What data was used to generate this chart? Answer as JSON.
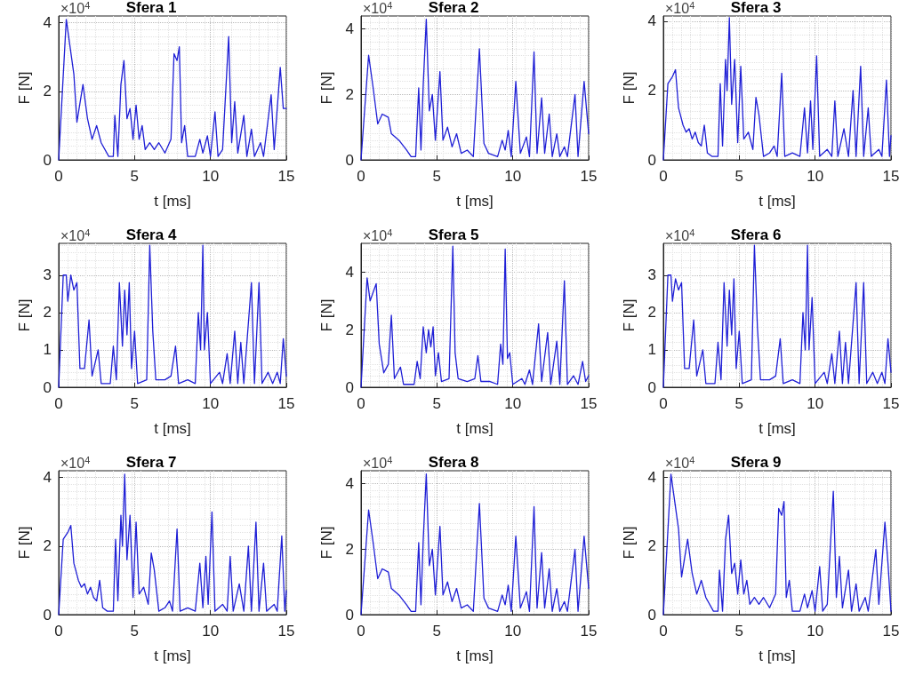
{
  "chart_data": [
    {
      "type": "line",
      "title": "Sfera 1",
      "xlabel": "t [ms]",
      "ylabel": "F [N]",
      "annotations": [
        "×10$^{4}$"
      ],
      "color": "#1f1fd6",
      "marker": "none",
      "line_style": "solid",
      "grid": true,
      "xlim": [
        0,
        15
      ],
      "xticks": [
        0,
        5,
        10,
        15
      ],
      "ylim": [
        0,
        4.2
      ],
      "yticks": [
        0,
        2,
        4
      ],
      "x": [
        0,
        0.5,
        1.0,
        1.2,
        1.6,
        1.9,
        2.2,
        2.5,
        2.8,
        3.3,
        3.6,
        3.7,
        3.9,
        4.1,
        4.3,
        4.5,
        4.7,
        4.9,
        5.1,
        5.3,
        5.5,
        5.7,
        6.0,
        6.3,
        6.6,
        7.0,
        7.4,
        7.6,
        7.8,
        7.95,
        8.1,
        8.3,
        8.5,
        9.0,
        9.3,
        9.5,
        9.8,
        10.0,
        10.3,
        10.5,
        10.8,
        11.2,
        11.4,
        11.6,
        11.8,
        12.2,
        12.4,
        12.7,
        12.9,
        13.3,
        13.5,
        14.0,
        14.2,
        14.6,
        14.8,
        15
      ],
      "values": [
        0,
        4.1,
        2.5,
        1.1,
        2.2,
        1.2,
        0.6,
        1.0,
        0.5,
        0.1,
        0.1,
        1.3,
        0.1,
        2.2,
        2.9,
        1.2,
        1.5,
        0.6,
        1.6,
        0.6,
        1.0,
        0.3,
        0.5,
        0.3,
        0.5,
        0.2,
        0.6,
        3.1,
        2.9,
        3.3,
        0.5,
        1.0,
        0.1,
        0.1,
        0.6,
        0.2,
        0.7,
        0.1,
        1.4,
        0.1,
        0.3,
        3.6,
        0.5,
        1.7,
        0.2,
        1.3,
        0.1,
        0.9,
        0.1,
        0.5,
        0.1,
        1.9,
        0.3,
        2.7,
        1.5,
        1.5
      ]
    },
    {
      "type": "line",
      "title": "Sfera 2",
      "xlabel": "t [ms]",
      "ylabel": "F [N]",
      "annotations": [
        "×10$^{4}$"
      ],
      "color": "#1f1fd6",
      "marker": "none",
      "line_style": "solid",
      "grid": true,
      "xlim": [
        0,
        15
      ],
      "xticks": [
        0,
        5,
        10,
        15
      ],
      "ylim": [
        0,
        4.4
      ],
      "yticks": [
        0,
        2,
        4
      ],
      "x": [
        0,
        0.5,
        0.8,
        1.1,
        1.4,
        1.8,
        2.0,
        2.5,
        3.0,
        3.3,
        3.6,
        3.8,
        3.95,
        4.1,
        4.3,
        4.5,
        4.7,
        4.9,
        5.2,
        5.4,
        5.7,
        6.0,
        6.3,
        6.6,
        7.0,
        7.4,
        7.8,
        8.1,
        8.4,
        9.0,
        9.3,
        9.5,
        9.7,
        9.9,
        10.2,
        10.5,
        10.9,
        11.1,
        11.4,
        11.6,
        11.9,
        12.1,
        12.4,
        12.6,
        12.9,
        13.1,
        13.4,
        13.6,
        14.1,
        14.3,
        14.7,
        15
      ],
      "values": [
        0,
        3.2,
        2.2,
        1.1,
        1.4,
        1.3,
        0.8,
        0.6,
        0.3,
        0.1,
        0.1,
        2.2,
        0.3,
        2.3,
        4.3,
        1.5,
        2.0,
        0.6,
        2.7,
        0.6,
        1.0,
        0.4,
        0.8,
        0.2,
        0.3,
        0.1,
        3.4,
        0.5,
        0.2,
        0.1,
        0.6,
        0.3,
        0.9,
        0.1,
        2.4,
        0.2,
        0.7,
        0.1,
        3.3,
        0.2,
        1.9,
        0.2,
        1.4,
        0.1,
        0.8,
        0.1,
        0.4,
        0.1,
        2.0,
        0.1,
        2.4,
        0.8
      ]
    },
    {
      "type": "line",
      "title": "Sfera 3",
      "xlabel": "t [ms]",
      "ylabel": "F [N]",
      "annotations": [
        "×10$^{4}$"
      ],
      "color": "#1f1fd6",
      "marker": "none",
      "line_style": "solid",
      "grid": true,
      "xlim": [
        0,
        15
      ],
      "xticks": [
        0,
        5,
        10,
        15
      ],
      "ylim": [
        0,
        4.15
      ],
      "yticks": [
        0,
        2,
        4
      ],
      "x": [
        0,
        0.3,
        0.6,
        0.8,
        1.0,
        1.3,
        1.5,
        1.7,
        1.9,
        2.1,
        2.3,
        2.5,
        2.7,
        2.9,
        3.2,
        3.6,
        3.75,
        3.9,
        4.1,
        4.2,
        4.35,
        4.5,
        4.7,
        4.9,
        5.1,
        5.3,
        5.6,
        5.9,
        6.1,
        6.3,
        6.6,
        7.0,
        7.3,
        7.5,
        7.8,
        8.0,
        8.5,
        9.0,
        9.3,
        9.5,
        9.7,
        9.85,
        10.1,
        10.3,
        10.8,
        11.1,
        11.3,
        11.5,
        11.9,
        12.2,
        12.5,
        12.7,
        13.0,
        13.2,
        13.5,
        13.7,
        14.2,
        14.4,
        14.7,
        14.9,
        15
      ],
      "values": [
        0,
        2.2,
        2.4,
        2.6,
        1.5,
        1.0,
        0.8,
        0.9,
        0.6,
        0.8,
        0.5,
        0.4,
        1.0,
        0.2,
        0.1,
        0.1,
        2.2,
        0.4,
        2.9,
        2.0,
        4.1,
        1.6,
        2.9,
        0.5,
        2.7,
        0.6,
        0.8,
        0.3,
        1.8,
        1.3,
        0.1,
        0.2,
        0.4,
        0.1,
        2.5,
        0.1,
        0.2,
        0.1,
        1.5,
        0.2,
        1.7,
        0.3,
        3.0,
        0.1,
        0.3,
        0.1,
        1.7,
        0.1,
        0.9,
        0.1,
        2.0,
        0.1,
        2.7,
        0.1,
        1.5,
        0.1,
        0.3,
        0.1,
        2.3,
        0.1,
        0.7
      ]
    },
    {
      "type": "line",
      "title": "Sfera 4",
      "xlabel": "t [ms]",
      "ylabel": "F [N]",
      "annotations": [
        "×10$^{4}$"
      ],
      "color": "#1f1fd6",
      "marker": "none",
      "line_style": "solid",
      "grid": true,
      "xlim": [
        0,
        15
      ],
      "xticks": [
        0,
        5,
        10,
        15
      ],
      "ylim": [
        0,
        3.85
      ],
      "yticks": [
        0,
        1,
        2,
        3
      ],
      "x": [
        0,
        0.3,
        0.5,
        0.6,
        0.8,
        1.0,
        1.2,
        1.4,
        1.7,
        2.0,
        2.2,
        2.6,
        2.8,
        3.4,
        3.6,
        3.8,
        4.0,
        4.2,
        4.35,
        4.5,
        4.65,
        4.8,
        5.0,
        5.2,
        5.8,
        6.0,
        6.2,
        6.4,
        7.0,
        7.4,
        7.7,
        7.9,
        8.5,
        9.0,
        9.2,
        9.35,
        9.5,
        9.6,
        9.8,
        10.0,
        10.6,
        10.8,
        11.1,
        11.3,
        11.6,
        11.8,
        12.0,
        12.2,
        12.7,
        12.9,
        13.2,
        13.4,
        13.8,
        14.1,
        14.4,
        14.6,
        14.8,
        15
      ],
      "values": [
        0,
        3.0,
        3.0,
        2.3,
        3.0,
        2.6,
        2.8,
        0.5,
        0.5,
        1.8,
        0.3,
        1.0,
        0.1,
        0.1,
        1.1,
        0.2,
        2.8,
        1.1,
        2.6,
        1.4,
        2.8,
        0.5,
        1.5,
        0.1,
        0.2,
        3.8,
        1.5,
        0.2,
        0.2,
        0.3,
        1.1,
        0.1,
        0.2,
        0.1,
        2.0,
        1.0,
        3.8,
        1.0,
        2.0,
        0.1,
        0.4,
        0.1,
        0.9,
        0.1,
        1.5,
        0.1,
        1.2,
        0.1,
        2.8,
        0.1,
        2.8,
        0.1,
        0.4,
        0.1,
        0.4,
        0.1,
        1.3,
        0.3
      ]
    },
    {
      "type": "line",
      "title": "Sfera 5",
      "xlabel": "t [ms]",
      "ylabel": "F [N]",
      "annotations": [
        "×10$^{4}$"
      ],
      "color": "#1f1fd6",
      "marker": "none",
      "line_style": "solid",
      "grid": true,
      "xlim": [
        0,
        15
      ],
      "xticks": [
        0,
        5,
        10,
        15
      ],
      "ylim": [
        0,
        5
      ],
      "yticks": [
        0,
        2,
        4
      ],
      "x": [
        0,
        0.4,
        0.6,
        0.8,
        1.0,
        1.2,
        1.5,
        1.8,
        2.0,
        2.2,
        2.6,
        2.8,
        3.5,
        3.7,
        3.9,
        4.1,
        4.3,
        4.45,
        4.6,
        4.75,
        4.9,
        5.1,
        5.3,
        5.8,
        6.05,
        6.2,
        6.4,
        7.0,
        7.5,
        7.7,
        7.9,
        8.5,
        9.0,
        9.2,
        9.35,
        9.5,
        9.65,
        9.8,
        10.0,
        10.6,
        10.8,
        11.1,
        11.3,
        11.7,
        11.9,
        12.3,
        12.5,
        12.9,
        13.1,
        13.4,
        13.6,
        14.0,
        14.3,
        14.6,
        14.8,
        15
      ],
      "values": [
        0,
        3.8,
        3.0,
        3.3,
        3.6,
        1.5,
        0.5,
        0.8,
        2.5,
        0.3,
        0.7,
        0.1,
        0.1,
        0.9,
        0.3,
        2.1,
        1.2,
        2.0,
        1.4,
        2.1,
        0.4,
        1.2,
        0.2,
        0.3,
        4.9,
        1.2,
        0.3,
        0.2,
        0.3,
        1.1,
        0.2,
        0.2,
        0.1,
        1.5,
        0.8,
        4.8,
        1.0,
        1.2,
        0.1,
        0.3,
        0.1,
        0.6,
        0.1,
        2.2,
        0.2,
        1.9,
        0.1,
        1.6,
        0.1,
        3.7,
        0.1,
        0.4,
        0.1,
        0.9,
        0.2,
        0.4
      ]
    },
    {
      "type": "line",
      "title": "Sfera 6",
      "xlabel": "t [ms]",
      "ylabel": "F [N]",
      "annotations": [
        "×10$^{4}$"
      ],
      "color": "#1f1fd6",
      "marker": "none",
      "line_style": "solid",
      "grid": true,
      "xlim": [
        0,
        15
      ],
      "xticks": [
        0,
        5,
        10,
        15
      ],
      "ylim": [
        0,
        3.85
      ],
      "yticks": [
        0,
        1,
        2,
        3
      ],
      "x": [
        0,
        0.3,
        0.5,
        0.6,
        0.8,
        1.0,
        1.2,
        1.4,
        1.7,
        2.0,
        2.2,
        2.6,
        2.8,
        3.4,
        3.6,
        3.8,
        4.0,
        4.2,
        4.35,
        4.5,
        4.65,
        4.8,
        5.0,
        5.2,
        5.8,
        6.0,
        6.2,
        6.4,
        7.0,
        7.4,
        7.7,
        7.9,
        8.5,
        9.0,
        9.2,
        9.35,
        9.5,
        9.6,
        9.8,
        10.0,
        10.6,
        10.8,
        11.1,
        11.3,
        11.6,
        11.8,
        12.0,
        12.2,
        12.7,
        12.9,
        13.2,
        13.4,
        13.8,
        14.1,
        14.4,
        14.6,
        14.8,
        15
      ],
      "values": [
        0,
        3.0,
        3.0,
        2.3,
        2.9,
        2.6,
        2.8,
        0.5,
        0.5,
        1.8,
        0.3,
        1.0,
        0.1,
        0.1,
        1.2,
        0.2,
        2.8,
        1.1,
        2.6,
        1.4,
        2.9,
        0.5,
        1.5,
        0.1,
        0.2,
        3.8,
        1.6,
        0.2,
        0.2,
        0.3,
        1.3,
        0.1,
        0.2,
        0.1,
        2.0,
        1.0,
        3.8,
        1.0,
        2.4,
        0.1,
        0.4,
        0.1,
        0.9,
        0.1,
        1.5,
        0.1,
        1.2,
        0.1,
        2.8,
        0.1,
        2.8,
        0.1,
        0.4,
        0.1,
        0.4,
        0.1,
        1.3,
        0.4
      ]
    },
    {
      "type": "line",
      "title": "Sfera 7",
      "xlabel": "t [ms]",
      "ylabel": "F [N]",
      "annotations": [
        "×10$^{4}$"
      ],
      "color": "#1f1fd6",
      "marker": "none",
      "line_style": "solid",
      "grid": true,
      "xlim": [
        0,
        15
      ],
      "xticks": [
        0,
        5,
        10,
        15
      ],
      "ylim": [
        0,
        4.2
      ],
      "yticks": [
        0,
        2,
        4
      ],
      "x": [
        0,
        0.3,
        0.6,
        0.8,
        1.0,
        1.3,
        1.5,
        1.7,
        1.9,
        2.1,
        2.3,
        2.5,
        2.7,
        2.9,
        3.2,
        3.6,
        3.75,
        3.9,
        4.1,
        4.2,
        4.35,
        4.5,
        4.7,
        4.9,
        5.1,
        5.3,
        5.6,
        5.9,
        6.1,
        6.3,
        6.6,
        7.0,
        7.3,
        7.5,
        7.8,
        8.0,
        8.5,
        9.0,
        9.3,
        9.5,
        9.7,
        9.85,
        10.1,
        10.3,
        10.8,
        11.1,
        11.3,
        11.5,
        11.9,
        12.2,
        12.5,
        12.7,
        13.0,
        13.2,
        13.5,
        13.7,
        14.2,
        14.4,
        14.7,
        14.9,
        15
      ],
      "values": [
        0,
        2.2,
        2.4,
        2.6,
        1.5,
        1.0,
        0.8,
        0.9,
        0.6,
        0.8,
        0.5,
        0.4,
        1.0,
        0.2,
        0.1,
        0.1,
        2.2,
        0.4,
        2.9,
        2.0,
        4.1,
        1.6,
        2.9,
        0.5,
        2.7,
        0.6,
        0.8,
        0.3,
        1.8,
        1.3,
        0.1,
        0.2,
        0.4,
        0.1,
        2.5,
        0.1,
        0.2,
        0.1,
        1.5,
        0.2,
        1.7,
        0.3,
        3.0,
        0.1,
        0.3,
        0.1,
        1.7,
        0.1,
        0.9,
        0.1,
        2.0,
        0.1,
        2.7,
        0.1,
        1.5,
        0.1,
        0.3,
        0.1,
        2.3,
        0.1,
        0.7
      ]
    },
    {
      "type": "line",
      "title": "Sfera 8",
      "xlabel": "t [ms]",
      "ylabel": "F [N]",
      "annotations": [
        "×10$^{4}$"
      ],
      "color": "#1f1fd6",
      "marker": "none",
      "line_style": "solid",
      "grid": true,
      "xlim": [
        0,
        15
      ],
      "xticks": [
        0,
        5,
        10,
        15
      ],
      "ylim": [
        0,
        4.4
      ],
      "yticks": [
        0,
        2,
        4
      ],
      "x": [
        0,
        0.5,
        0.8,
        1.1,
        1.4,
        1.8,
        2.0,
        2.5,
        3.0,
        3.3,
        3.6,
        3.8,
        3.95,
        4.1,
        4.3,
        4.5,
        4.7,
        4.9,
        5.2,
        5.4,
        5.7,
        6.0,
        6.3,
        6.6,
        7.0,
        7.4,
        7.8,
        8.1,
        8.4,
        9.0,
        9.3,
        9.5,
        9.7,
        9.9,
        10.2,
        10.5,
        10.9,
        11.1,
        11.4,
        11.6,
        11.9,
        12.1,
        12.4,
        12.6,
        12.9,
        13.1,
        13.4,
        13.6,
        14.1,
        14.3,
        14.7,
        15
      ],
      "values": [
        0,
        3.2,
        2.2,
        1.1,
        1.4,
        1.3,
        0.8,
        0.6,
        0.3,
        0.1,
        0.1,
        2.2,
        0.3,
        2.3,
        4.3,
        1.5,
        2.0,
        0.6,
        2.7,
        0.6,
        1.0,
        0.4,
        0.8,
        0.2,
        0.3,
        0.1,
        3.4,
        0.5,
        0.2,
        0.1,
        0.6,
        0.3,
        0.9,
        0.1,
        2.4,
        0.2,
        0.7,
        0.1,
        3.3,
        0.2,
        1.9,
        0.2,
        1.4,
        0.1,
        0.8,
        0.1,
        0.4,
        0.1,
        2.0,
        0.1,
        2.4,
        0.8
      ]
    },
    {
      "type": "line",
      "title": "Sfera 9",
      "xlabel": "t [ms]",
      "ylabel": "F [N]",
      "annotations": [
        "×10$^{4}$"
      ],
      "color": "#1f1fd6",
      "marker": "none",
      "line_style": "solid",
      "grid": true,
      "xlim": [
        0,
        15
      ],
      "xticks": [
        0,
        5,
        10,
        15
      ],
      "ylim": [
        0,
        4.2
      ],
      "yticks": [
        0,
        2,
        4
      ],
      "x": [
        0,
        0.5,
        1.0,
        1.2,
        1.6,
        1.9,
        2.2,
        2.5,
        2.8,
        3.3,
        3.6,
        3.7,
        3.9,
        4.1,
        4.3,
        4.5,
        4.7,
        4.9,
        5.1,
        5.3,
        5.5,
        5.7,
        6.0,
        6.3,
        6.6,
        7.0,
        7.4,
        7.6,
        7.8,
        7.95,
        8.1,
        8.3,
        8.5,
        9.0,
        9.3,
        9.5,
        9.8,
        10.0,
        10.3,
        10.5,
        10.8,
        11.2,
        11.4,
        11.6,
        11.8,
        12.2,
        12.4,
        12.7,
        12.9,
        13.3,
        13.5,
        14.0,
        14.2,
        14.6,
        14.8,
        15
      ],
      "values": [
        0,
        4.1,
        2.5,
        1.1,
        2.2,
        1.2,
        0.6,
        1.0,
        0.5,
        0.1,
        0.1,
        1.3,
        0.1,
        2.2,
        2.9,
        1.2,
        1.5,
        0.6,
        1.6,
        0.6,
        1.0,
        0.3,
        0.5,
        0.3,
        0.5,
        0.2,
        0.6,
        3.1,
        2.9,
        3.3,
        0.5,
        1.0,
        0.1,
        0.1,
        0.6,
        0.2,
        0.7,
        0.1,
        1.4,
        0.1,
        0.3,
        3.6,
        0.5,
        1.7,
        0.2,
        1.3,
        0.1,
        0.9,
        0.1,
        0.5,
        0.1,
        1.9,
        0.3,
        2.7,
        1.5,
        0.1
      ]
    }
  ]
}
